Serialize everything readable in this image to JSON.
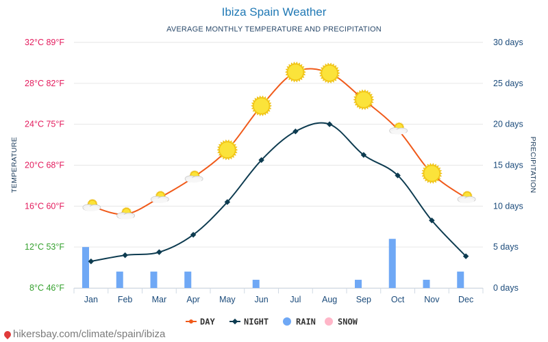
{
  "chart_data": {
    "type": "line",
    "title": "Ibiza Spain Weather",
    "subtitle": "AVERAGE MONTHLY TEMPERATURE AND PRECIPITATION",
    "ylabel": "TEMPERATURE",
    "y2label": "PRECIPITATION",
    "categories": [
      "Jan",
      "Feb",
      "Mar",
      "Apr",
      "May",
      "Jun",
      "Jul",
      "Aug",
      "Sep",
      "Oct",
      "Nov",
      "Dec"
    ],
    "y_ticks": [
      {
        "value": 8,
        "label": "8°C 46°F",
        "color": "#33a02c"
      },
      {
        "value": 12,
        "label": "12°C 53°F",
        "color": "#33a02c"
      },
      {
        "value": 16,
        "label": "16°C 60°F",
        "color": "#e31a5c"
      },
      {
        "value": 20,
        "label": "20°C 68°F",
        "color": "#e31a5c"
      },
      {
        "value": 24,
        "label": "24°C 75°F",
        "color": "#e31a5c"
      },
      {
        "value": 28,
        "label": "28°C 82°F",
        "color": "#e31a5c"
      },
      {
        "value": 32,
        "label": "32°C 89°F",
        "color": "#e31a5c"
      }
    ],
    "ylim": [
      8,
      32
    ],
    "y2_ticks": [
      {
        "value": 0,
        "label": "0 days"
      },
      {
        "value": 5,
        "label": "5 days"
      },
      {
        "value": 10,
        "label": "10 days"
      },
      {
        "value": 15,
        "label": "15 days"
      },
      {
        "value": 20,
        "label": "20 days"
      },
      {
        "value": 25,
        "label": "25 days"
      },
      {
        "value": 30,
        "label": "30 days"
      }
    ],
    "y2lim": [
      0,
      30
    ],
    "series": [
      {
        "name": "DAY",
        "color": "#f05a1a",
        "values": [
          16.0,
          15.2,
          16.8,
          18.8,
          21.5,
          25.8,
          29.1,
          29.0,
          26.4,
          23.5,
          19.2,
          16.8
        ],
        "icons": [
          "partly-cloudy",
          "partly-cloudy",
          "partly-cloudy",
          "partly-cloudy",
          "sunny",
          "sunny",
          "sunny",
          "sunny",
          "sunny",
          "partly-cloudy",
          "sunny",
          "partly-cloudy"
        ]
      },
      {
        "name": "NIGHT",
        "color": "#0d3b50",
        "values": [
          10.6,
          11.2,
          11.5,
          13.2,
          16.4,
          20.5,
          23.3,
          24.0,
          21.0,
          19.0,
          14.6,
          11.1
        ]
      },
      {
        "name": "RAIN",
        "color": "#6fa8f5",
        "type": "bar",
        "values": [
          5,
          2,
          2,
          2,
          0,
          1,
          0,
          0,
          1,
          6,
          1,
          2
        ]
      },
      {
        "name": "SNOW",
        "color": "#ffb6c8",
        "type": "bar",
        "values": [
          0,
          0,
          0,
          0,
          0,
          0,
          0,
          0,
          0,
          0,
          0,
          0
        ]
      }
    ],
    "legend": {
      "position": "bottom",
      "items": [
        "DAY",
        "NIGHT",
        "RAIN",
        "SNOW"
      ]
    }
  },
  "footer": {
    "source": "hikersbay.com/climate/spain/ibiza"
  }
}
